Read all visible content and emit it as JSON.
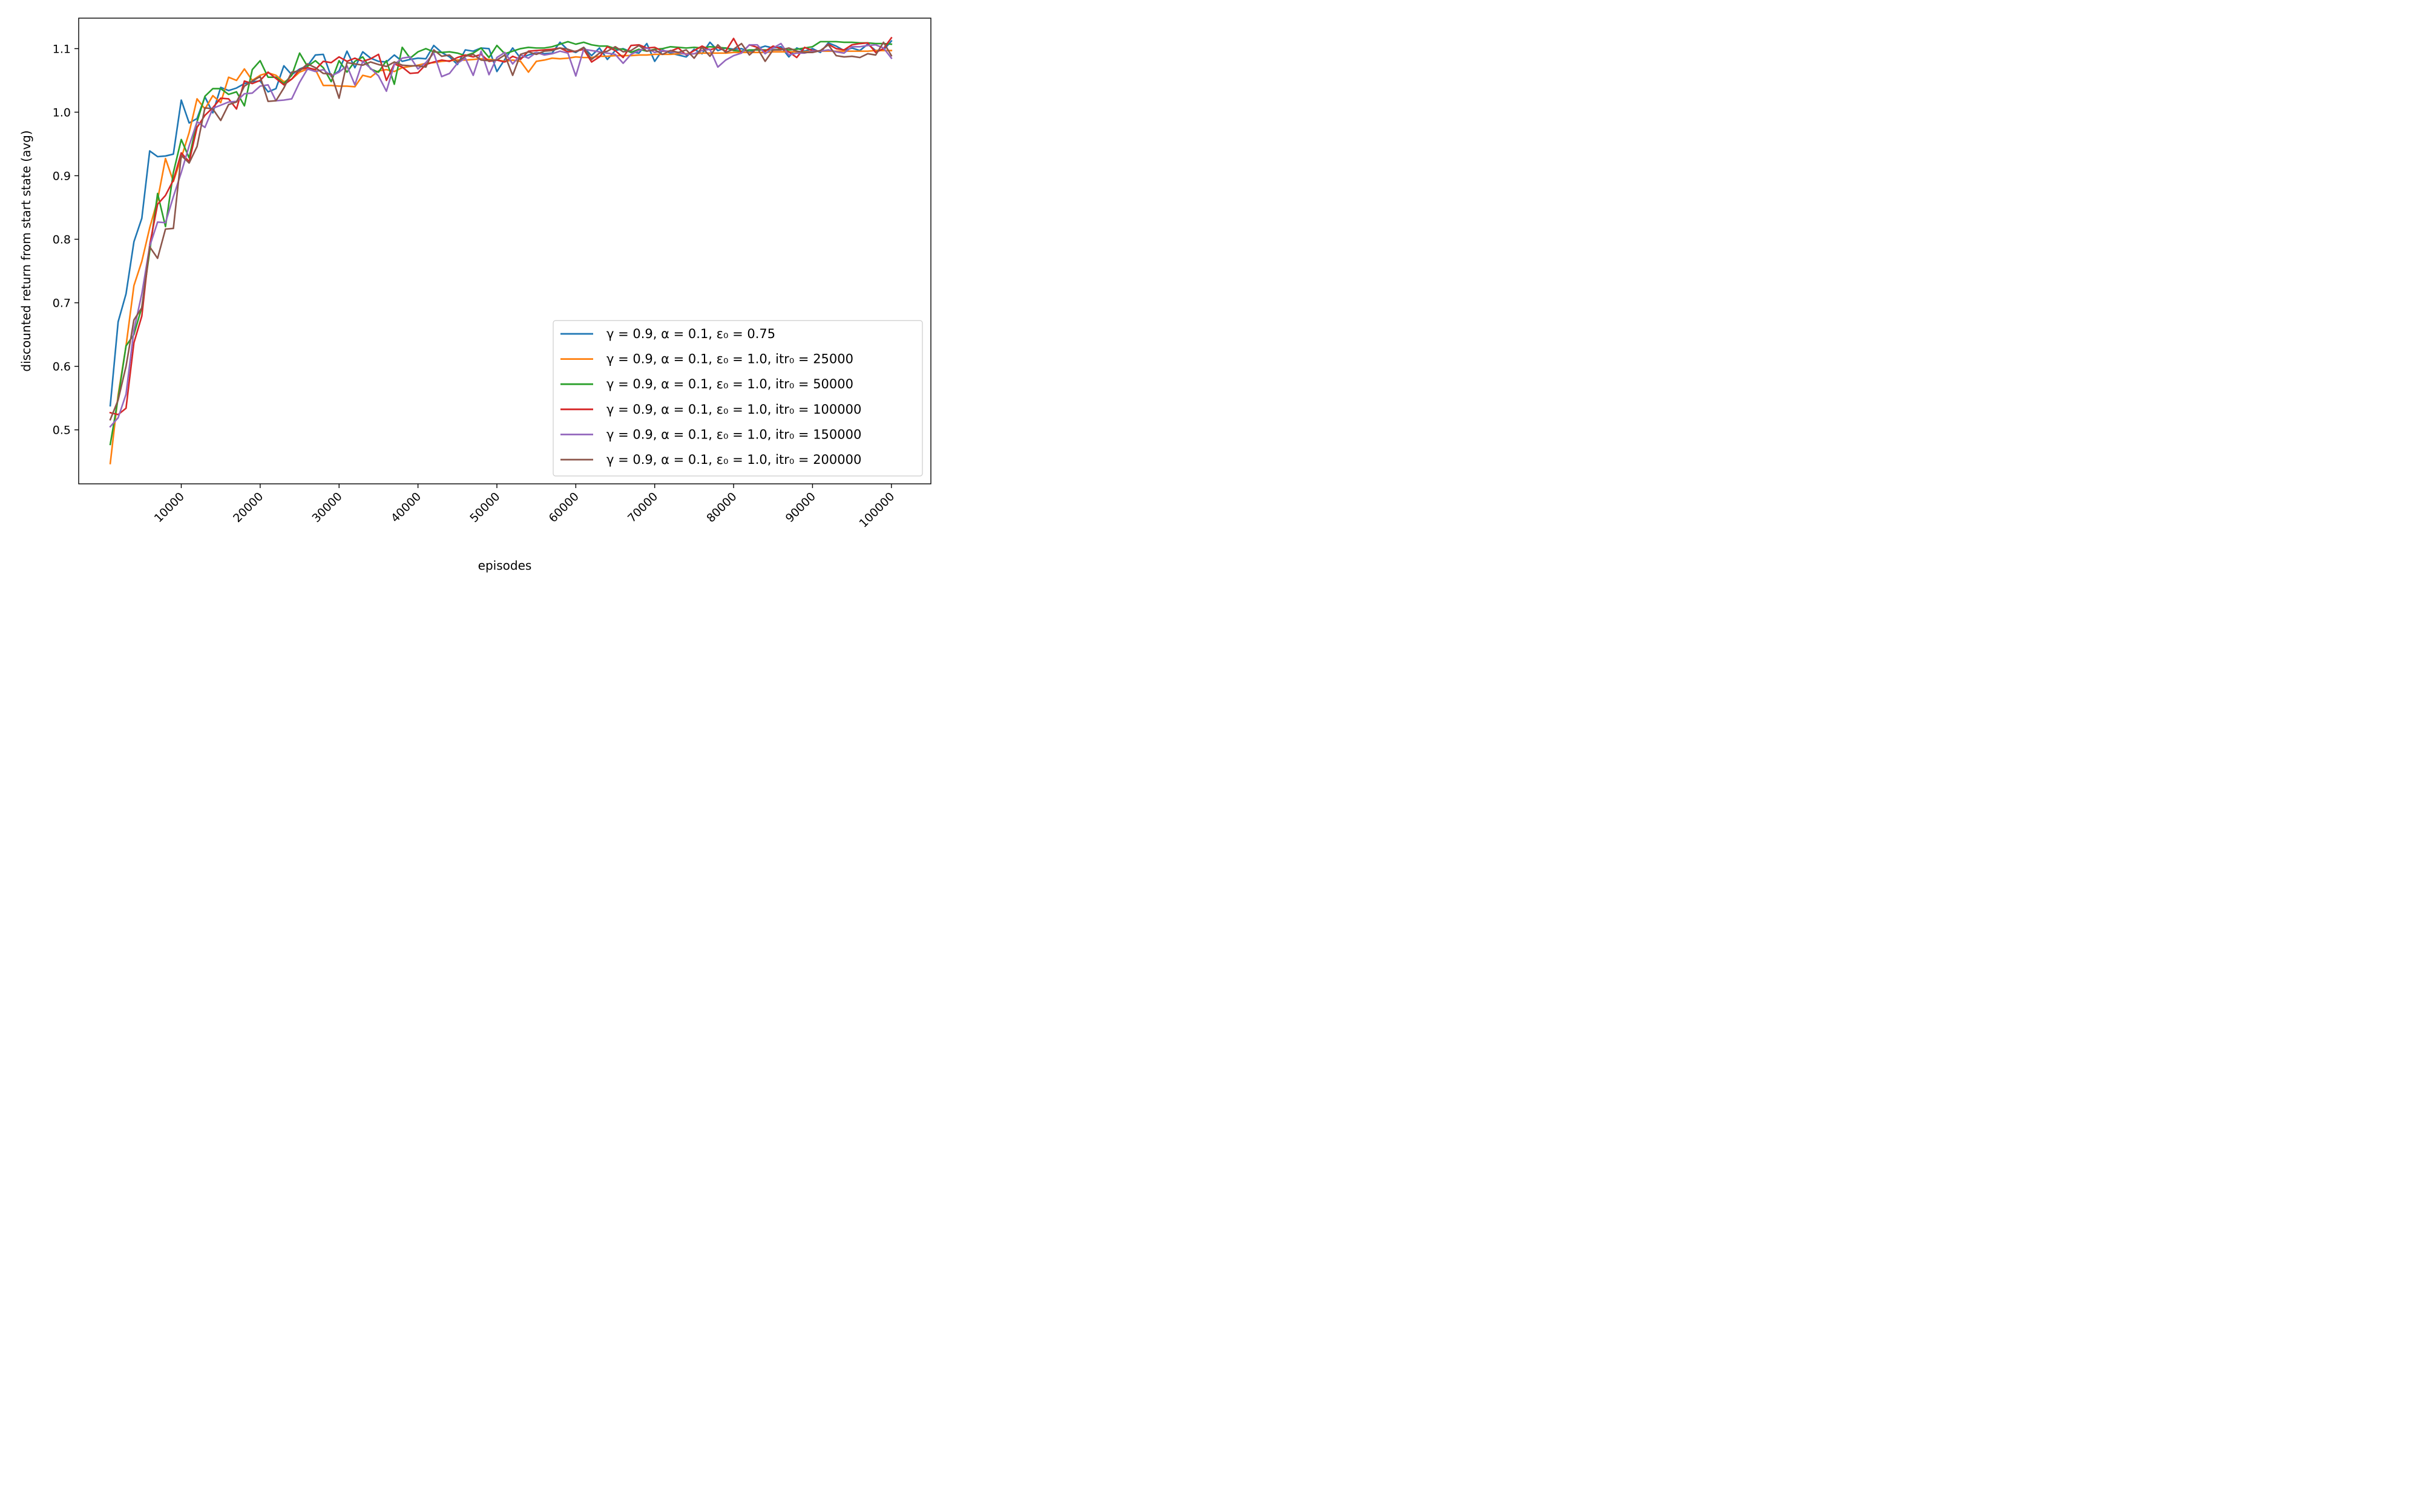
{
  "chart_data": {
    "type": "line",
    "xlabel": "episodes",
    "ylabel": "discounted return from start state (avg)",
    "xlim": [
      -3000,
      105000
    ],
    "ylim": [
      0.415,
      1.148
    ],
    "xticks": [
      10000,
      20000,
      30000,
      40000,
      50000,
      60000,
      70000,
      80000,
      90000,
      100000
    ],
    "xtick_labels": [
      "10000",
      "20000",
      "30000",
      "40000",
      "50000",
      "60000",
      "70000",
      "80000",
      "90000",
      "100000"
    ],
    "yticks": [
      0.5,
      0.6,
      0.7,
      0.8,
      0.9,
      1.0,
      1.1
    ],
    "ytick_labels": [
      "0.5",
      "0.6",
      "0.7",
      "0.8",
      "0.9",
      "1.0",
      "1.1"
    ],
    "grid": false,
    "legend_position": "lower-right",
    "x": [
      1000,
      2000,
      3000,
      4000,
      5000,
      6000,
      7000,
      8000,
      9000,
      10000,
      11000,
      12000,
      13000,
      14000,
      15000,
      16000,
      17000,
      18000,
      19000,
      20000,
      21000,
      22000,
      23000,
      24000,
      25000,
      26000,
      27000,
      28000,
      29000,
      30000,
      31000,
      32000,
      33000,
      34000,
      35000,
      36000,
      37000,
      38000,
      39000,
      40000,
      41000,
      42000,
      43000,
      44000,
      45000,
      46000,
      47000,
      48000,
      49000,
      50000,
      51000,
      52000,
      53000,
      54000,
      55000,
      56000,
      57000,
      58000,
      59000,
      60000,
      61000,
      62000,
      63000,
      64000,
      65000,
      66000,
      67000,
      68000,
      69000,
      70000,
      71000,
      72000,
      73000,
      74000,
      75000,
      76000,
      77000,
      78000,
      79000,
      80000,
      81000,
      82000,
      83000,
      84000,
      85000,
      86000,
      87000,
      88000,
      89000,
      90000,
      91000,
      92000,
      93000,
      94000,
      95000,
      96000,
      97000,
      98000,
      99000,
      100000
    ],
    "series": [
      {
        "name": "γ = 0.9, α = 0.1, ε₀ = 0.75",
        "color": "#1f77b4",
        "values": [
          0.538,
          0.67,
          0.714,
          0.796,
          0.833,
          0.939,
          0.93,
          0.931,
          0.934,
          1.019,
          0.983,
          0.99,
          1.024,
          0.999,
          1.039,
          1.034,
          1.038,
          1.045,
          1.048,
          1.049,
          1.032,
          1.037,
          1.073,
          1.059,
          1.068,
          1.073,
          1.09,
          1.091,
          1.056,
          1.065,
          1.096,
          1.07,
          1.095,
          1.085,
          1.08,
          1.079,
          1.09,
          1.08,
          1.083,
          1.085,
          1.084,
          1.105,
          1.094,
          1.087,
          1.075,
          1.098,
          1.096,
          1.101,
          1.1,
          1.064,
          1.083,
          1.101,
          1.085,
          1.09,
          1.094,
          1.092,
          1.093,
          1.11,
          1.098,
          1.094,
          1.102,
          1.089,
          1.101,
          1.083,
          1.097,
          1.1,
          1.095,
          1.093,
          1.108,
          1.08,
          1.098,
          1.093,
          1.09,
          1.087,
          1.099,
          1.092,
          1.11,
          1.097,
          1.101,
          1.099,
          1.1,
          1.095,
          1.1,
          1.104,
          1.101,
          1.103,
          1.087,
          1.101,
          1.096,
          1.1,
          1.094,
          1.109,
          1.104,
          1.097,
          1.101,
          1.097,
          1.107,
          1.097,
          1.098,
          1.112
        ]
      },
      {
        "name": "γ = 0.9, α = 0.1, ε₀ = 1.0, itr₀ = 25000",
        "color": "#ff7f0e",
        "values": [
          0.447,
          0.555,
          0.632,
          0.727,
          0.765,
          0.818,
          0.862,
          0.927,
          0.891,
          0.928,
          0.968,
          1.021,
          1.005,
          1.026,
          1.015,
          1.055,
          1.05,
          1.068,
          1.05,
          1.058,
          1.062,
          1.058,
          1.048,
          1.052,
          1.063,
          1.068,
          1.067,
          1.042,
          1.042,
          1.041,
          1.041,
          1.04,
          1.058,
          1.055,
          1.065,
          1.067,
          1.064,
          1.07,
          1.072,
          1.074,
          1.077,
          1.078,
          1.08,
          1.081,
          1.082,
          1.082,
          1.083,
          1.084,
          1.083,
          1.082,
          1.08,
          1.082,
          1.08,
          1.063,
          1.08,
          1.082,
          1.085,
          1.084,
          1.085,
          1.087,
          1.086,
          1.086,
          1.088,
          1.088,
          1.089,
          1.089,
          1.089,
          1.09,
          1.09,
          1.091,
          1.091,
          1.091,
          1.092,
          1.092,
          1.092,
          1.093,
          1.093,
          1.093,
          1.093,
          1.094,
          1.094,
          1.094,
          1.094,
          1.094,
          1.095,
          1.095,
          1.095,
          1.095,
          1.095,
          1.096,
          1.096,
          1.096,
          1.096,
          1.096,
          1.096,
          1.096,
          1.096,
          1.097,
          1.097,
          1.097
        ]
      },
      {
        "name": "γ = 0.9, α = 0.1, ε₀ = 1.0, itr₀ = 50000",
        "color": "#2ca02c",
        "values": [
          0.477,
          0.55,
          0.632,
          0.65,
          0.693,
          0.781,
          0.872,
          0.82,
          0.905,
          0.957,
          0.928,
          0.985,
          1.025,
          1.037,
          1.037,
          1.028,
          1.032,
          1.01,
          1.067,
          1.081,
          1.055,
          1.055,
          1.045,
          1.058,
          1.093,
          1.072,
          1.081,
          1.07,
          1.048,
          1.081,
          1.063,
          1.08,
          1.087,
          1.068,
          1.063,
          1.081,
          1.044,
          1.102,
          1.085,
          1.095,
          1.1,
          1.095,
          1.094,
          1.095,
          1.093,
          1.089,
          1.093,
          1.101,
          1.086,
          1.105,
          1.092,
          1.096,
          1.1,
          1.102,
          1.101,
          1.101,
          1.103,
          1.107,
          1.111,
          1.107,
          1.11,
          1.106,
          1.104,
          1.104,
          1.1,
          1.099,
          1.094,
          1.099,
          1.096,
          1.099,
          1.1,
          1.103,
          1.102,
          1.101,
          1.102,
          1.101,
          1.103,
          1.102,
          1.101,
          1.097,
          1.096,
          1.098,
          1.098,
          1.098,
          1.098,
          1.099,
          1.098,
          1.099,
          1.101,
          1.103,
          1.111,
          1.111,
          1.111,
          1.11,
          1.11,
          1.109,
          1.109,
          1.108,
          1.108,
          1.107
        ]
      },
      {
        "name": "γ = 0.9, α = 0.1, ε₀ = 1.0, itr₀ = 100000",
        "color": "#d62728",
        "values": [
          0.527,
          0.524,
          0.534,
          0.637,
          0.679,
          0.791,
          0.855,
          0.869,
          0.893,
          0.936,
          0.922,
          0.976,
          0.995,
          1.007,
          1.022,
          1.021,
          1.005,
          1.049,
          1.045,
          1.05,
          1.063,
          1.053,
          1.043,
          1.052,
          1.067,
          1.07,
          1.067,
          1.08,
          1.078,
          1.087,
          1.08,
          1.085,
          1.08,
          1.084,
          1.091,
          1.05,
          1.076,
          1.071,
          1.061,
          1.062,
          1.075,
          1.079,
          1.082,
          1.08,
          1.086,
          1.09,
          1.087,
          1.091,
          1.08,
          1.082,
          1.079,
          1.088,
          1.083,
          1.096,
          1.097,
          1.098,
          1.099,
          1.101,
          1.095,
          1.096,
          1.099,
          1.079,
          1.087,
          1.103,
          1.097,
          1.086,
          1.105,
          1.106,
          1.101,
          1.102,
          1.096,
          1.096,
          1.101,
          1.09,
          1.097,
          1.104,
          1.098,
          1.102,
          1.096,
          1.116,
          1.093,
          1.106,
          1.102,
          1.096,
          1.104,
          1.1,
          1.095,
          1.086,
          1.102,
          1.097,
          1.096,
          1.107,
          1.1,
          1.098,
          1.106,
          1.108,
          1.109,
          1.094,
          1.1,
          1.117
        ]
      },
      {
        "name": "γ = 0.9, α = 0.1, ε₀ = 1.0, itr₀ = 150000",
        "color": "#9467bd",
        "values": [
          0.505,
          0.519,
          0.556,
          0.657,
          0.714,
          0.789,
          0.827,
          0.826,
          0.867,
          0.905,
          0.947,
          0.985,
          0.976,
          1.006,
          1.011,
          1.016,
          1.017,
          1.029,
          1.03,
          1.041,
          1.043,
          1.018,
          1.019,
          1.021,
          1.047,
          1.068,
          1.064,
          1.067,
          1.057,
          1.063,
          1.073,
          1.043,
          1.08,
          1.069,
          1.057,
          1.033,
          1.075,
          1.085,
          1.087,
          1.068,
          1.078,
          1.093,
          1.056,
          1.061,
          1.077,
          1.085,
          1.058,
          1.096,
          1.059,
          1.086,
          1.094,
          1.076,
          1.09,
          1.085,
          1.094,
          1.09,
          1.092,
          1.096,
          1.093,
          1.057,
          1.099,
          1.097,
          1.095,
          1.093,
          1.091,
          1.077,
          1.091,
          1.097,
          1.101,
          1.094,
          1.097,
          1.095,
          1.094,
          1.091,
          1.092,
          1.097,
          1.099,
          1.071,
          1.082,
          1.089,
          1.093,
          1.106,
          1.106,
          1.092,
          1.101,
          1.108,
          1.09,
          1.093,
          1.093,
          1.096,
          1.096,
          1.098,
          1.095,
          1.093,
          1.103,
          1.103,
          1.105,
          1.106,
          1.101,
          1.085
        ]
      },
      {
        "name": "γ = 0.9, α = 0.1, ε₀ = 1.0, itr₀ = 200000",
        "color": "#8c564b",
        "values": [
          0.516,
          0.547,
          0.6,
          0.673,
          0.692,
          0.788,
          0.77,
          0.816,
          0.817,
          0.932,
          0.92,
          0.946,
          1.007,
          1.005,
          0.987,
          1.012,
          1.016,
          1.041,
          1.049,
          1.056,
          1.017,
          1.018,
          1.038,
          1.063,
          1.065,
          1.076,
          1.07,
          1.061,
          1.06,
          1.022,
          1.078,
          1.076,
          1.074,
          1.079,
          1.075,
          1.072,
          1.079,
          1.074,
          1.073,
          1.073,
          1.071,
          1.098,
          1.088,
          1.09,
          1.079,
          1.088,
          1.091,
          1.082,
          1.081,
          1.082,
          1.09,
          1.058,
          1.091,
          1.095,
          1.091,
          1.096,
          1.097,
          1.101,
          1.099,
          1.095,
          1.102,
          1.083,
          1.093,
          1.096,
          1.103,
          1.095,
          1.097,
          1.105,
          1.096,
          1.098,
          1.091,
          1.097,
          1.094,
          1.098,
          1.085,
          1.102,
          1.088,
          1.106,
          1.094,
          1.099,
          1.108,
          1.09,
          1.101,
          1.08,
          1.098,
          1.098,
          1.101,
          1.096,
          1.094,
          1.094,
          1.097,
          1.106,
          1.089,
          1.087,
          1.088,
          1.086,
          1.092,
          1.09,
          1.11,
          1.089
        ]
      }
    ]
  }
}
